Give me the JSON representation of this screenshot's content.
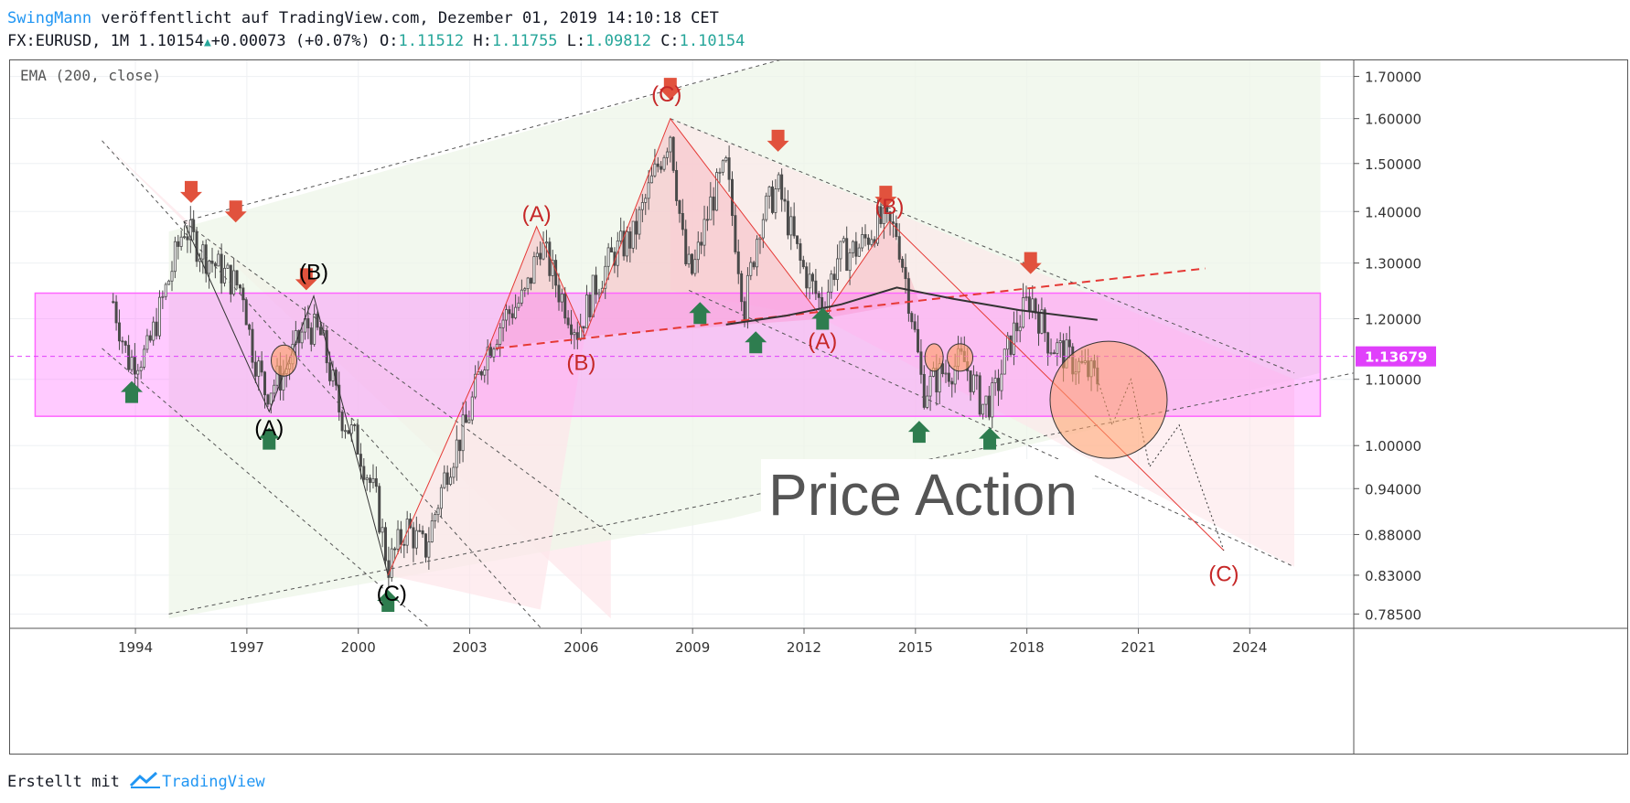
{
  "header": {
    "author": "SwingMann",
    "published_text": "veröffentlicht auf TradingView.com, Dezember 01, 2019 14:10:18 CET",
    "symbol": "FX:EURUSD, 1M 1.10154",
    "change": "+0.00073 (+0.07%)",
    "o_label": "O:",
    "o_value": "1.11512",
    "h_label": "H:",
    "h_value": "1.11755",
    "l_label": "L:",
    "l_value": "1.09812",
    "c_label": "C:",
    "c_value": "1.10154"
  },
  "indicator_label": "EMA (200, close)",
  "watermark": "Price Action",
  "current_price_label": "1.13679",
  "footer": {
    "created_with": "Erstellt mit",
    "brand": "TradingView"
  },
  "colors": {
    "up_candle": "#ffffff",
    "candle_stroke": "#4a4a4a",
    "bearish_arrow": "#e1523d",
    "bullish_arrow": "#2e7d4f",
    "zone": "#ff66ff",
    "wave_red": "#e53935",
    "price_tag": "#e040fb",
    "accent_blue": "#2196f3",
    "accent_teal": "#26a69a"
  },
  "chart_data": {
    "type": "candlestick",
    "title": "FX:EURUSD, 1M",
    "y_ticks": [
      "1.70000",
      "1.60000",
      "1.50000",
      "1.40000",
      "1.30000",
      "1.20000",
      "1.10000",
      "1.00000",
      "0.94000",
      "0.88000",
      "0.83000",
      "0.78500"
    ],
    "x_ticks": [
      "1994",
      "1997",
      "2000",
      "2003",
      "2006",
      "2009",
      "2012",
      "2015",
      "2018",
      "2021",
      "2024"
    ],
    "x_range": [
      1990.6,
      2026.8
    ],
    "y_range": [
      0.769,
      1.742
    ],
    "y_scale": "log",
    "last_close": 1.10154,
    "current_price": 1.13679,
    "ema200": [
      {
        "x": 2009.9,
        "y": 1.19
      },
      {
        "x": 2011.5,
        "y": 1.205
      },
      {
        "x": 2013.0,
        "y": 1.225
      },
      {
        "x": 2014.5,
        "y": 1.255
      },
      {
        "x": 2016.0,
        "y": 1.235
      },
      {
        "x": 2017.8,
        "y": 1.215
      },
      {
        "x": 2019.9,
        "y": 1.198
      }
    ],
    "price_series": [
      {
        "x": 1993.4,
        "y": 1.23
      },
      {
        "x": 1993.8,
        "y": 1.13
      },
      {
        "x": 1994.3,
        "y": 1.14
      },
      {
        "x": 1994.9,
        "y": 1.27
      },
      {
        "x": 1995.3,
        "y": 1.37
      },
      {
        "x": 1995.8,
        "y": 1.32
      },
      {
        "x": 1996.4,
        "y": 1.28
      },
      {
        "x": 1996.9,
        "y": 1.25
      },
      {
        "x": 1997.1,
        "y": 1.16
      },
      {
        "x": 1997.5,
        "y": 1.08
      },
      {
        "x": 1998.0,
        "y": 1.11
      },
      {
        "x": 1998.6,
        "y": 1.19
      },
      {
        "x": 1999.0,
        "y": 1.17
      },
      {
        "x": 1999.5,
        "y": 1.05
      },
      {
        "x": 2000.0,
        "y": 1.0
      },
      {
        "x": 2000.5,
        "y": 0.92
      },
      {
        "x": 2000.8,
        "y": 0.84
      },
      {
        "x": 2001.3,
        "y": 0.89
      },
      {
        "x": 2001.8,
        "y": 0.86
      },
      {
        "x": 2002.4,
        "y": 0.97
      },
      {
        "x": 2002.9,
        "y": 1.03
      },
      {
        "x": 2003.4,
        "y": 1.14
      },
      {
        "x": 2003.9,
        "y": 1.2
      },
      {
        "x": 2004.5,
        "y": 1.24
      },
      {
        "x": 2004.9,
        "y": 1.34
      },
      {
        "x": 2005.4,
        "y": 1.25
      },
      {
        "x": 2005.9,
        "y": 1.18
      },
      {
        "x": 2006.4,
        "y": 1.26
      },
      {
        "x": 2006.9,
        "y": 1.32
      },
      {
        "x": 2007.4,
        "y": 1.35
      },
      {
        "x": 2007.9,
        "y": 1.46
      },
      {
        "x": 2008.4,
        "y": 1.57
      },
      {
        "x": 2008.8,
        "y": 1.3
      },
      {
        "x": 2009.0,
        "y": 1.28
      },
      {
        "x": 2009.5,
        "y": 1.42
      },
      {
        "x": 2009.9,
        "y": 1.49
      },
      {
        "x": 2010.4,
        "y": 1.22
      },
      {
        "x": 2010.8,
        "y": 1.38
      },
      {
        "x": 2011.3,
        "y": 1.45
      },
      {
        "x": 2011.9,
        "y": 1.3
      },
      {
        "x": 2012.5,
        "y": 1.22
      },
      {
        "x": 2012.9,
        "y": 1.31
      },
      {
        "x": 2013.5,
        "y": 1.33
      },
      {
        "x": 2014.0,
        "y": 1.38
      },
      {
        "x": 2014.5,
        "y": 1.36
      },
      {
        "x": 2014.9,
        "y": 1.21
      },
      {
        "x": 2015.2,
        "y": 1.08
      },
      {
        "x": 2015.7,
        "y": 1.11
      },
      {
        "x": 2016.3,
        "y": 1.13
      },
      {
        "x": 2016.8,
        "y": 1.06
      },
      {
        "x": 2017.1,
        "y": 1.07
      },
      {
        "x": 2017.6,
        "y": 1.17
      },
      {
        "x": 2018.1,
        "y": 1.24
      },
      {
        "x": 2018.6,
        "y": 1.16
      },
      {
        "x": 2019.2,
        "y": 1.13
      },
      {
        "x": 2019.9,
        "y": 1.1
      }
    ],
    "wave_labels": [
      {
        "text": "(A)",
        "x": 1997.6,
        "y": 1.015,
        "color": "black"
      },
      {
        "text": "(B)",
        "x": 1998.8,
        "y": 1.27,
        "color": "black"
      },
      {
        "text": "(C)",
        "x": 2000.9,
        "y": 0.8,
        "color": "black"
      },
      {
        "text": "(A)",
        "x": 2004.8,
        "y": 1.38,
        "color": "red"
      },
      {
        "text": "(B)",
        "x": 2006.0,
        "y": 1.115,
        "color": "red"
      },
      {
        "text": "(C)",
        "x": 2008.3,
        "y": 1.64,
        "color": "red"
      },
      {
        "text": "(A)",
        "x": 2012.5,
        "y": 1.15,
        "color": "red"
      },
      {
        "text": "(B)",
        "x": 2014.3,
        "y": 1.395,
        "color": "red"
      },
      {
        "text": "(C)",
        "x": 2023.3,
        "y": 0.823,
        "color": "red"
      }
    ],
    "bearish_arrows": [
      {
        "x": 1995.5,
        "y": 1.44
      },
      {
        "x": 1996.7,
        "y": 1.4
      },
      {
        "x": 1998.6,
        "y": 1.27
      },
      {
        "x": 2008.4,
        "y": 1.67
      },
      {
        "x": 2011.3,
        "y": 1.55
      },
      {
        "x": 2014.2,
        "y": 1.43
      },
      {
        "x": 2018.1,
        "y": 1.3
      }
    ],
    "bullish_arrows": [
      {
        "x": 1993.9,
        "y": 1.08
      },
      {
        "x": 1997.6,
        "y": 1.01
      },
      {
        "x": 2000.8,
        "y": 0.8
      },
      {
        "x": 2009.2,
        "y": 1.21
      },
      {
        "x": 2010.7,
        "y": 1.16
      },
      {
        "x": 2012.5,
        "y": 1.2
      },
      {
        "x": 2015.1,
        "y": 1.02
      },
      {
        "x": 2017.0,
        "y": 1.01
      }
    ],
    "support_resistance_zone": {
      "y_top": 1.245,
      "y_bottom": 1.043,
      "x_start": 1991.3,
      "x_end": 2025.9
    },
    "dashed_trendline": {
      "x1": 2003.7,
      "y1": 1.15,
      "x2": 2022.8,
      "y2": 1.29
    },
    "projection_path": [
      {
        "x": 2019.9,
        "y": 1.1
      },
      {
        "x": 2020.3,
        "y": 1.03
      },
      {
        "x": 2020.8,
        "y": 1.1
      },
      {
        "x": 2021.3,
        "y": 0.97
      },
      {
        "x": 2022.1,
        "y": 1.03
      },
      {
        "x": 2023.3,
        "y": 0.86
      }
    ]
  }
}
